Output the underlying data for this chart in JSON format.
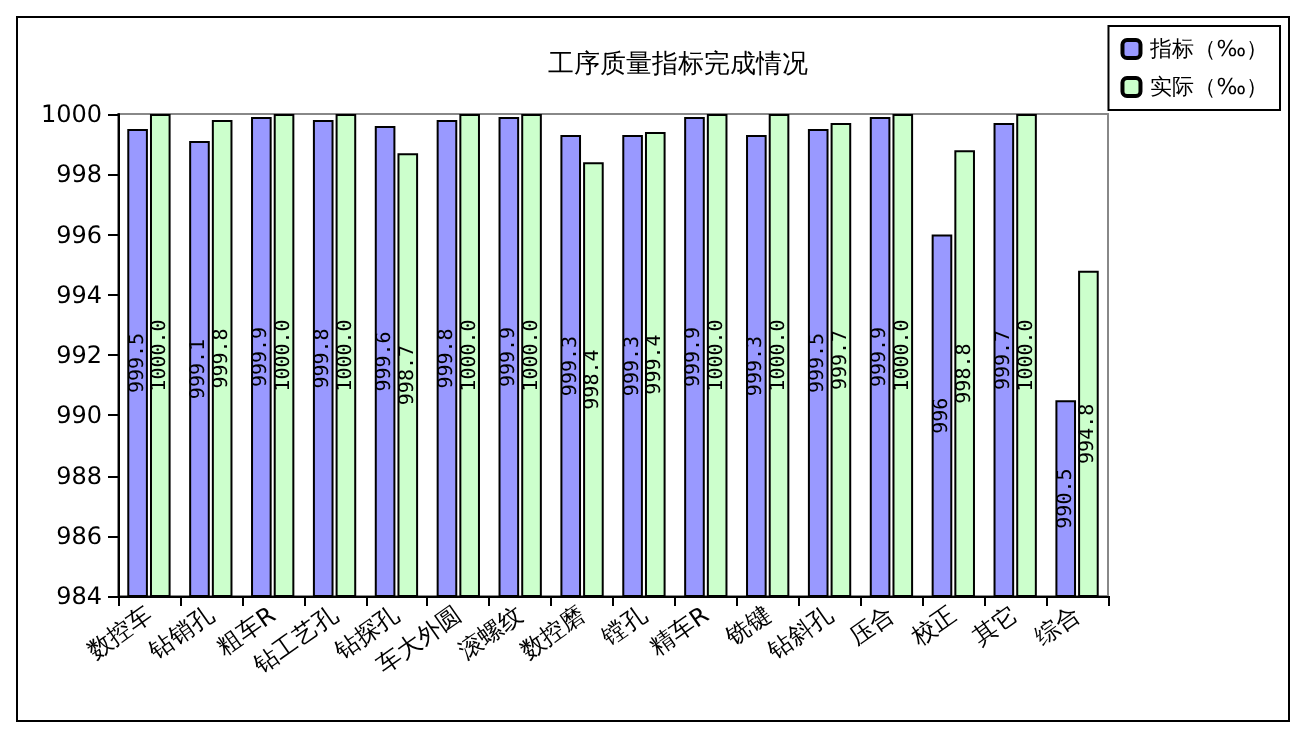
{
  "chart_data": {
    "type": "bar",
    "title": "工序质量指标完成情况",
    "categories": [
      "数控车",
      "钻销孔",
      "粗车R",
      "钻工艺孔",
      "钻探孔",
      "车大外圆",
      "滚螺纹",
      "数控磨",
      "镗孔",
      "精车R",
      "铣键",
      "钻斜孔",
      "压合",
      "校正",
      "其它",
      "综合"
    ],
    "series": [
      {
        "name": "指标（‰）",
        "color": "#9999ff",
        "values": [
          999.5,
          999.1,
          999.9,
          999.8,
          999.6,
          999.8,
          999.9,
          999.3,
          999.3,
          999.9,
          999.3,
          999.5,
          999.9,
          996,
          999.7,
          990.5
        ],
        "value_labels": [
          "999.5",
          "999.1",
          "999.9",
          "999.8",
          "999.6",
          "999.8",
          "999.9",
          "999.3",
          "999.3",
          "999.9",
          "999.3",
          "999.5",
          "999.9",
          "996",
          "999.7",
          "990.5"
        ]
      },
      {
        "name": "实际（‰）",
        "color": "#ccffcc",
        "values": [
          1000.0,
          999.8,
          1000.0,
          1000.0,
          998.7,
          1000.0,
          1000.0,
          998.4,
          999.4,
          1000.0,
          1000.0,
          999.7,
          1000.0,
          998.8,
          1000.0,
          994.8
        ],
        "value_labels": [
          "1000.0",
          "999.8",
          "1000.0",
          "1000.0",
          "998.7",
          "1000.0",
          "1000.0",
          "998.4",
          "999.4",
          "1000.0",
          "1000.0",
          "999.7",
          "1000.0",
          "998.8",
          "1000.0",
          "994.8"
        ]
      }
    ],
    "ylim": [
      984,
      1000
    ],
    "yticks": [
      984,
      986,
      988,
      990,
      992,
      994,
      996,
      998,
      1000
    ],
    "legend": "right"
  }
}
